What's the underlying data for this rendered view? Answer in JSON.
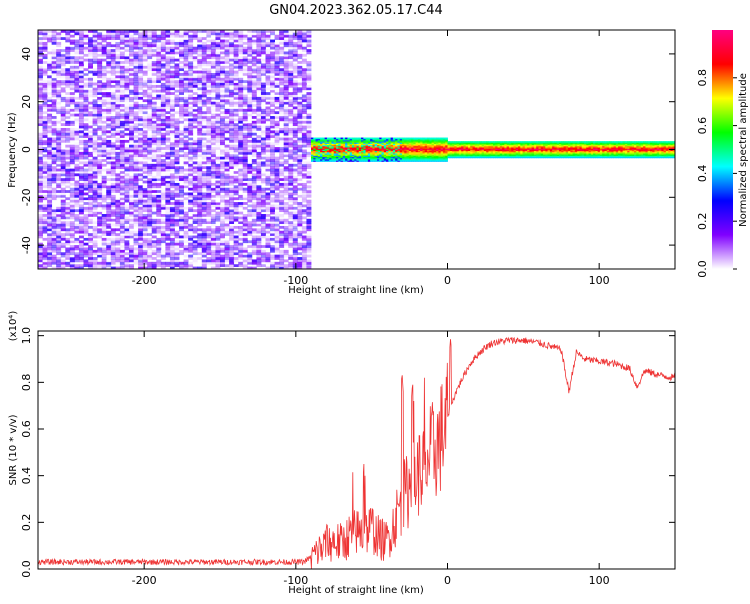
{
  "figure_title": "GN04.2023.362.05.17.C44",
  "colorbar": {
    "label": "Normalized spectral amplitude",
    "ticks": [
      0.0,
      0.2,
      0.4,
      0.6,
      0.8
    ],
    "tick_labels": [
      "0.0",
      "0.2",
      "0.4",
      "0.6",
      "0.8"
    ],
    "range": [
      0,
      1
    ],
    "colormap": [
      "#ffffff",
      "#8000ff",
      "#0000ff",
      "#00ffff",
      "#00ff00",
      "#ffff00",
      "#ff0000",
      "#ff0080"
    ]
  },
  "chart_data": [
    {
      "type": "heatmap",
      "xlabel": "Height of straight line (km)",
      "ylabel": "Frequency (Hz)",
      "xlim": [
        -270,
        150
      ],
      "ylim": [
        -50,
        50
      ],
      "x_ticks": [
        -200,
        -100,
        0,
        100
      ],
      "x_tick_labels": [
        "-200",
        "-100",
        "0",
        "100"
      ],
      "y_ticks": [
        -40,
        -20,
        0,
        20,
        40
      ],
      "y_tick_labels": [
        "-40",
        "-20",
        "0",
        "20",
        "40"
      ],
      "regions": [
        {
          "x_range": [
            -270,
            -90
          ],
          "freq_range": [
            -50,
            50
          ],
          "amplitude_range": [
            0.0,
            0.25
          ],
          "note": "broadband noise"
        },
        {
          "x_range": [
            -90,
            150
          ],
          "freq_range": [
            -5,
            5
          ],
          "amplitude_range": [
            0.4,
            1.0
          ],
          "note": "narrow signal band centered at 0 Hz"
        }
      ]
    },
    {
      "type": "line",
      "xlabel": "Height of straight line (km)",
      "ylabel": "SNR (10 * v/v)",
      "y_multiplier": "(x10⁴)",
      "xlim": [
        -270,
        150
      ],
      "ylim": [
        0,
        1.02
      ],
      "x_ticks": [
        -200,
        -100,
        0,
        100
      ],
      "x_tick_labels": [
        "-200",
        "-100",
        "0",
        "100"
      ],
      "y_ticks": [
        0.0,
        0.2,
        0.4,
        0.6,
        0.8,
        1.0
      ],
      "y_tick_labels": [
        "0.0",
        "0.2",
        "0.4",
        "0.6",
        "0.8",
        "1.0"
      ],
      "color": "#ee3333",
      "series": [
        {
          "x": [
            -270,
            -250,
            -230,
            -210,
            -190,
            -170,
            -150,
            -130,
            -110,
            -95,
            -90,
            -85,
            -80,
            -75,
            -70,
            -65,
            -60,
            -55,
            -50,
            -45,
            -40,
            -35,
            -30,
            -25,
            -20,
            -15,
            -10,
            -5,
            0,
            5,
            10,
            15,
            20,
            25,
            30,
            40,
            50,
            60,
            70,
            75,
            80,
            85,
            90,
            100,
            110,
            120,
            125,
            130,
            140,
            150
          ],
          "y": [
            0.03,
            0.03,
            0.03,
            0.03,
            0.03,
            0.03,
            0.03,
            0.03,
            0.03,
            0.03,
            0.05,
            0.08,
            0.1,
            0.12,
            0.11,
            0.14,
            0.16,
            0.15,
            0.18,
            0.13,
            0.12,
            0.2,
            0.3,
            0.35,
            0.4,
            0.45,
            0.5,
            0.55,
            0.65,
            0.75,
            0.82,
            0.88,
            0.92,
            0.95,
            0.97,
            0.98,
            0.98,
            0.97,
            0.95,
            0.94,
            0.76,
            0.93,
            0.9,
            0.89,
            0.88,
            0.86,
            0.78,
            0.85,
            0.83,
            0.82
          ]
        }
      ],
      "peaks": [
        {
          "x": -80,
          "y": 0.23
        },
        {
          "x": -62,
          "y": 0.46
        },
        {
          "x": -55,
          "y": 0.46
        },
        {
          "x": -30,
          "y": 0.84
        },
        {
          "x": -23,
          "y": 0.8
        },
        {
          "x": -15,
          "y": 0.84
        },
        {
          "x": 2,
          "y": 0.99
        }
      ]
    }
  ]
}
